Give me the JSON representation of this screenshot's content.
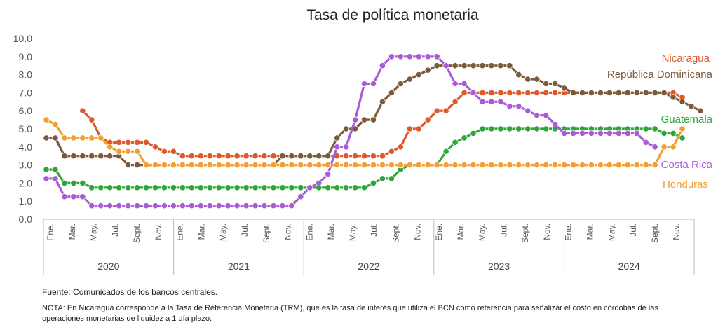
{
  "chart_data": {
    "type": "line",
    "title": "Tasa de política monetaria",
    "ylim": [
      0,
      10
    ],
    "yticks": [
      "0.0",
      "1.0",
      "2.0",
      "3.0",
      "4.0",
      "5.0",
      "6.0",
      "7.0",
      "8.0",
      "9.0",
      "10.0"
    ],
    "x_tick_labels": [
      "Ene.",
      "Mar.",
      "May.",
      "Jul.",
      "Sept.",
      "Nov.",
      "Ene.",
      "Mar.",
      "May.",
      "Jul.",
      "Sept.",
      "Nov.",
      "Ene.",
      "Mar.",
      "May.",
      "Jul.",
      "Sept.",
      "Nov.",
      "Ene.",
      "Mar.",
      "May.",
      "Jul.",
      "Sept.",
      "Nov.",
      "Ene.",
      "Mar.",
      "May.",
      "Jul.",
      "Sept.",
      "Nov."
    ],
    "years": [
      "2020",
      "2021",
      "2022",
      "2023",
      "2024"
    ],
    "series": [
      {
        "name": "Nicaragua",
        "color": "#e0582a",
        "values": [
          null,
          null,
          null,
          null,
          6.0,
          5.5,
          4.5,
          4.25,
          4.25,
          4.25,
          4.25,
          4.25,
          4.0,
          3.75,
          3.75,
          3.5,
          3.5,
          3.5,
          3.5,
          3.5,
          3.5,
          3.5,
          3.5,
          3.5,
          3.5,
          3.5,
          3.5,
          3.5,
          3.5,
          3.5,
          3.5,
          3.5,
          3.5,
          3.5,
          3.5,
          3.5,
          3.5,
          3.5,
          3.75,
          4.0,
          5.0,
          5.0,
          5.5,
          6.0,
          6.0,
          6.5,
          7.0,
          7.0,
          7.0,
          7.0,
          7.0,
          7.0,
          7.0,
          7.0,
          7.0,
          7.0,
          7.0,
          7.0,
          7.0,
          7.0,
          7.0,
          7.0,
          7.0,
          7.0,
          7.0,
          7.0,
          7.0,
          7.0,
          7.0,
          7.0,
          6.75,
          null
        ]
      },
      {
        "name": "República Dominicana",
        "color": "#7b5a3a",
        "values": [
          4.5,
          4.5,
          3.5,
          3.5,
          3.5,
          3.5,
          3.5,
          3.5,
          3.5,
          3.0,
          3.0,
          3.0,
          3.0,
          3.0,
          3.0,
          3.0,
          3.0,
          3.0,
          3.0,
          3.0,
          3.0,
          3.0,
          3.0,
          3.0,
          3.0,
          3.0,
          3.5,
          3.5,
          3.5,
          3.5,
          3.5,
          3.5,
          4.5,
          5.0,
          5.0,
          5.5,
          5.5,
          6.5,
          7.0,
          7.5,
          7.75,
          8.0,
          8.25,
          8.5,
          8.5,
          8.5,
          8.5,
          8.5,
          8.5,
          8.5,
          8.5,
          8.5,
          8.0,
          7.75,
          7.75,
          7.5,
          7.5,
          7.25,
          7.0,
          7.0,
          7.0,
          7.0,
          7.0,
          7.0,
          7.0,
          7.0,
          7.0,
          7.0,
          7.0,
          6.75,
          6.5,
          6.25,
          6.0
        ]
      },
      {
        "name": "Guatemala",
        "color": "#2ea637",
        "values": [
          2.75,
          2.75,
          2.0,
          2.0,
          2.0,
          1.75,
          1.75,
          1.75,
          1.75,
          1.75,
          1.75,
          1.75,
          1.75,
          1.75,
          1.75,
          1.75,
          1.75,
          1.75,
          1.75,
          1.75,
          1.75,
          1.75,
          1.75,
          1.75,
          1.75,
          1.75,
          1.75,
          1.75,
          1.75,
          1.75,
          1.75,
          1.75,
          1.75,
          1.75,
          1.75,
          1.75,
          2.0,
          2.25,
          2.25,
          2.75,
          3.0,
          3.0,
          3.0,
          3.0,
          3.75,
          4.25,
          4.5,
          4.75,
          5.0,
          5.0,
          5.0,
          5.0,
          5.0,
          5.0,
          5.0,
          5.0,
          5.0,
          5.0,
          5.0,
          5.0,
          5.0,
          5.0,
          5.0,
          5.0,
          5.0,
          5.0,
          5.0,
          5.0,
          4.75,
          4.75,
          4.5
        ]
      },
      {
        "name": "Costa Rica",
        "color": "#a95bd6",
        "values": [
          2.25,
          2.25,
          1.25,
          1.25,
          1.25,
          0.75,
          0.75,
          0.75,
          0.75,
          0.75,
          0.75,
          0.75,
          0.75,
          0.75,
          0.75,
          0.75,
          0.75,
          0.75,
          0.75,
          0.75,
          0.75,
          0.75,
          0.75,
          0.75,
          0.75,
          0.75,
          0.75,
          0.75,
          1.25,
          1.75,
          2.0,
          2.5,
          4.0,
          4.0,
          5.5,
          7.5,
          7.5,
          8.5,
          9.0,
          9.0,
          9.0,
          9.0,
          9.0,
          9.0,
          8.5,
          7.5,
          7.5,
          7.0,
          6.5,
          6.5,
          6.5,
          6.25,
          6.25,
          6.0,
          5.75,
          5.75,
          5.25,
          4.75,
          4.75,
          4.75,
          4.75,
          4.75,
          4.75,
          4.75,
          4.75,
          4.75,
          4.25,
          4.0
        ]
      },
      {
        "name": "Honduras",
        "color": "#f29e33",
        "values": [
          5.5,
          5.25,
          4.5,
          4.5,
          4.5,
          4.5,
          4.5,
          4.0,
          3.75,
          3.75,
          3.75,
          3.0,
          3.0,
          3.0,
          3.0,
          3.0,
          3.0,
          3.0,
          3.0,
          3.0,
          3.0,
          3.0,
          3.0,
          3.0,
          3.0,
          3.0,
          3.0,
          3.0,
          3.0,
          3.0,
          3.0,
          3.0,
          3.0,
          3.0,
          3.0,
          3.0,
          3.0,
          3.0,
          3.0,
          3.0,
          3.0,
          3.0,
          3.0,
          3.0,
          3.0,
          3.0,
          3.0,
          3.0,
          3.0,
          3.0,
          3.0,
          3.0,
          3.0,
          3.0,
          3.0,
          3.0,
          3.0,
          3.0,
          3.0,
          3.0,
          3.0,
          3.0,
          3.0,
          3.0,
          3.0,
          3.0,
          3.0,
          3.0,
          4.0,
          4.0,
          5.0,
          null,
          null
        ]
      }
    ]
  },
  "footer": {
    "source": "Fuente: Comunicados de los bancos centrales.",
    "note": "NOTA: En Nicaragua corresponde a la Tasa de Referencia Monetaria (TRM), que es la tasa de interés que utiliza el BCN como referencia para señalizar el costo en córdobas de las operaciones monetarias de liquidez a 1 día plazo."
  }
}
